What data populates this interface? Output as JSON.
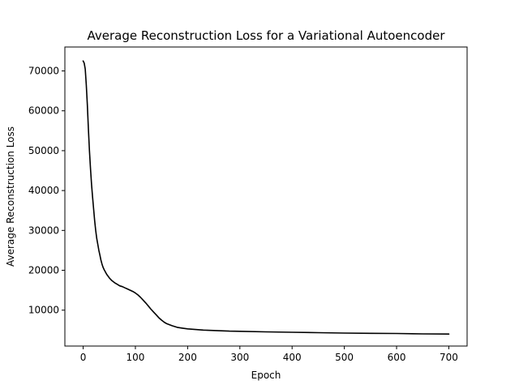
{
  "chart_data": {
    "type": "line",
    "title": "Average Reconstruction Loss for a Variational Autoencoder",
    "xlabel": "Epoch",
    "ylabel": "Average Reconstruction Loss",
    "xlim": [
      -35,
      735
    ],
    "ylim": [
      1000,
      76000
    ],
    "x_ticks": [
      0,
      100,
      200,
      300,
      400,
      500,
      600,
      700
    ],
    "y_ticks": [
      10000,
      20000,
      30000,
      40000,
      50000,
      60000,
      70000
    ],
    "grid": false,
    "legend": "none",
    "series": [
      {
        "color": "#000000",
        "x": [
          0,
          2,
          4,
          6,
          8,
          10,
          12,
          14,
          16,
          18,
          20,
          22,
          24,
          26,
          28,
          30,
          32,
          34,
          36,
          38,
          40,
          45,
          50,
          55,
          60,
          65,
          70,
          75,
          80,
          85,
          90,
          95,
          100,
          105,
          110,
          115,
          120,
          125,
          130,
          135,
          140,
          145,
          150,
          155,
          160,
          170,
          180,
          190,
          200,
          210,
          220,
          230,
          240,
          250,
          260,
          280,
          300,
          350,
          400,
          450,
          500,
          550,
          600,
          650,
          700
        ],
        "y": [
          72500,
          72000,
          70500,
          66500,
          61500,
          55500,
          50000,
          45500,
          41500,
          38500,
          35500,
          32500,
          30000,
          28000,
          26500,
          25000,
          23800,
          22600,
          21600,
          20800,
          20200,
          19000,
          18100,
          17400,
          16900,
          16500,
          16100,
          15900,
          15600,
          15300,
          15000,
          14700,
          14300,
          13800,
          13200,
          12500,
          11800,
          11000,
          10200,
          9500,
          8800,
          8100,
          7500,
          7000,
          6600,
          6100,
          5700,
          5500,
          5300,
          5200,
          5100,
          5000,
          4950,
          4900,
          4850,
          4750,
          4700,
          4550,
          4450,
          4350,
          4250,
          4200,
          4150,
          4050,
          4000
        ]
      }
    ]
  }
}
